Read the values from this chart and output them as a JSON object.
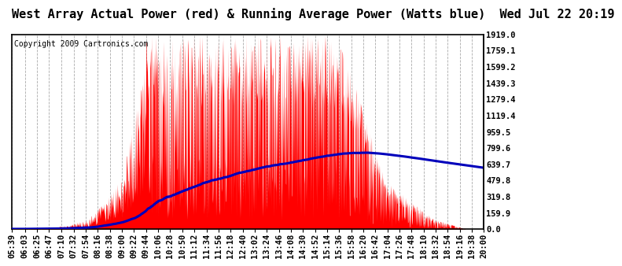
{
  "title": "West Array Actual Power (red) & Running Average Power (Watts blue)  Wed Jul 22 20:19",
  "copyright": "Copyright 2009 Cartronics.com",
  "ylabel_right": [
    "1919.0",
    "1759.1",
    "1599.2",
    "1439.3",
    "1279.4",
    "1119.4",
    "959.5",
    "799.6",
    "639.7",
    "479.8",
    "319.8",
    "159.9",
    "0.0"
  ],
  "ymax": 1919.0,
  "ymin": 0.0,
  "bg_color": "#ffffff",
  "plot_bg": "#ffffff",
  "red_color": "#ff0000",
  "blue_color": "#0000bb",
  "grid_color": "#aaaaaa",
  "title_fontsize": 11,
  "copyright_fontsize": 7,
  "tick_fontsize": 7.5,
  "x_labels": [
    "05:39",
    "06:03",
    "06:25",
    "06:47",
    "07:10",
    "07:32",
    "07:54",
    "08:16",
    "08:38",
    "09:00",
    "09:22",
    "09:44",
    "10:06",
    "10:28",
    "10:50",
    "11:12",
    "11:34",
    "11:56",
    "12:18",
    "12:40",
    "13:02",
    "13:24",
    "13:46",
    "14:08",
    "14:30",
    "14:52",
    "15:14",
    "15:36",
    "15:58",
    "16:20",
    "16:42",
    "17:04",
    "17:26",
    "17:48",
    "18:10",
    "18:32",
    "18:54",
    "19:16",
    "19:38",
    "20:00"
  ]
}
